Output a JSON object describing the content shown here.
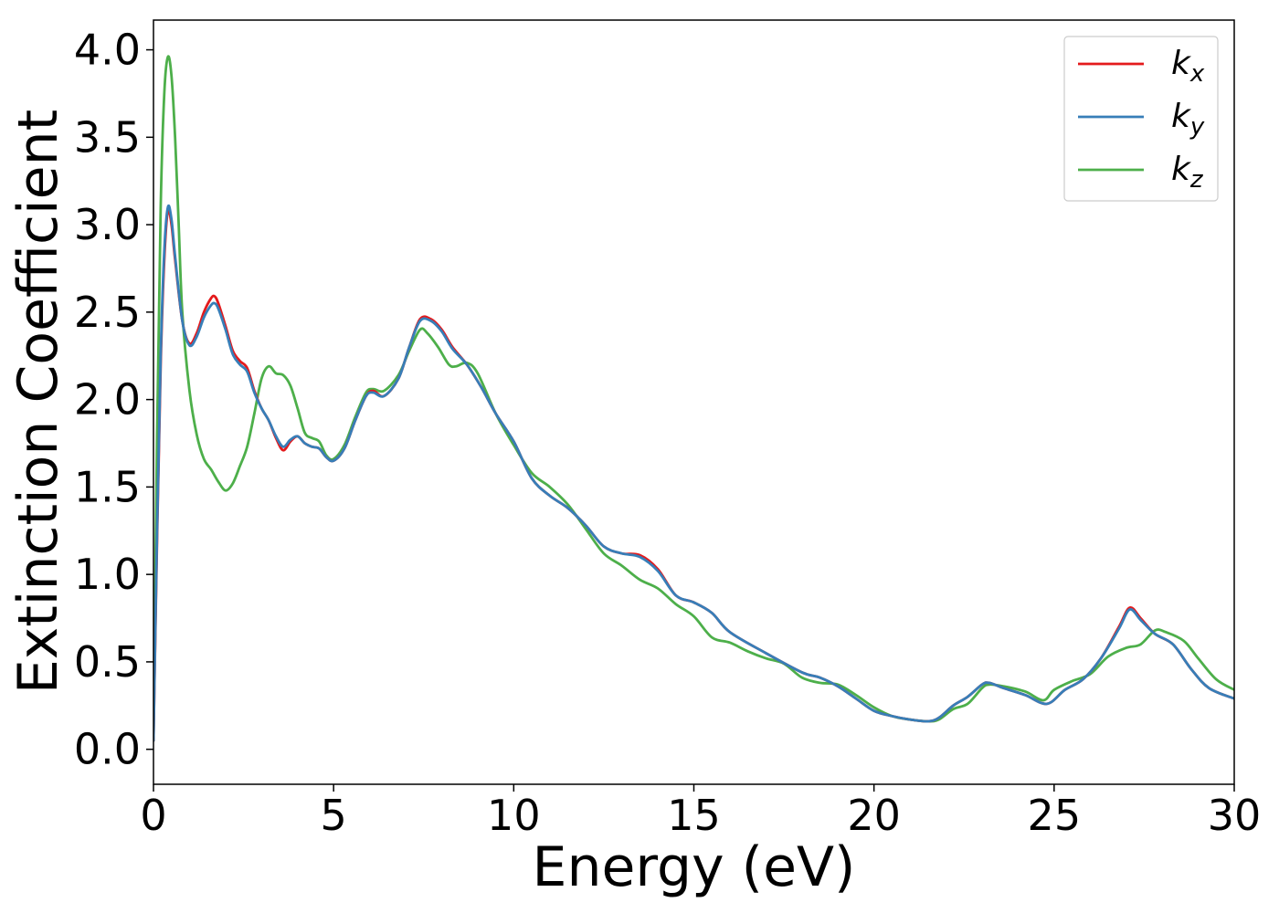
{
  "chart_data": {
    "type": "line",
    "xlabel": "Energy (eV)",
    "ylabel": "Extinction Coefficient",
    "xlim": [
      0,
      30
    ],
    "ylim": [
      -0.2,
      4.17
    ],
    "xticks": [
      0,
      5,
      10,
      15,
      20,
      25,
      30
    ],
    "xtick_labels": [
      "0",
      "5",
      "10",
      "15",
      "20",
      "25",
      "30"
    ],
    "yticks": [
      0.0,
      0.5,
      1.0,
      1.5,
      2.0,
      2.5,
      3.0,
      3.5,
      4.0
    ],
    "ytick_labels": [
      "0.0",
      "0.5",
      "1.0",
      "1.5",
      "2.0",
      "2.5",
      "3.0",
      "3.5",
      "4.0"
    ],
    "grid": false,
    "legend_position": "top-right",
    "series": [
      {
        "name": "k",
        "subscript": "x",
        "color": "#e41a1c",
        "points": [
          [
            0,
            0.05
          ],
          [
            0.1,
            1.2
          ],
          [
            0.2,
            2.2
          ],
          [
            0.3,
            2.8
          ],
          [
            0.4,
            3.08
          ],
          [
            0.5,
            3.0
          ],
          [
            0.6,
            2.8
          ],
          [
            0.8,
            2.45
          ],
          [
            1.0,
            2.32
          ],
          [
            1.2,
            2.38
          ],
          [
            1.4,
            2.5
          ],
          [
            1.6,
            2.58
          ],
          [
            1.7,
            2.59
          ],
          [
            1.8,
            2.55
          ],
          [
            2.0,
            2.42
          ],
          [
            2.2,
            2.28
          ],
          [
            2.4,
            2.22
          ],
          [
            2.6,
            2.18
          ],
          [
            2.8,
            2.05
          ],
          [
            3.0,
            1.95
          ],
          [
            3.2,
            1.88
          ],
          [
            3.4,
            1.78
          ],
          [
            3.6,
            1.71
          ],
          [
            3.8,
            1.76
          ],
          [
            4.0,
            1.79
          ],
          [
            4.2,
            1.75
          ],
          [
            4.4,
            1.73
          ],
          [
            4.6,
            1.72
          ],
          [
            4.8,
            1.67
          ],
          [
            5.0,
            1.65
          ],
          [
            5.3,
            1.72
          ],
          [
            5.6,
            1.88
          ],
          [
            5.9,
            2.02
          ],
          [
            6.1,
            2.05
          ],
          [
            6.4,
            2.02
          ],
          [
            6.8,
            2.12
          ],
          [
            7.1,
            2.3
          ],
          [
            7.4,
            2.46
          ],
          [
            7.7,
            2.46
          ],
          [
            8.0,
            2.4
          ],
          [
            8.3,
            2.3
          ],
          [
            8.7,
            2.2
          ],
          [
            9.1,
            2.07
          ],
          [
            9.5,
            1.92
          ],
          [
            10.0,
            1.76
          ],
          [
            10.5,
            1.55
          ],
          [
            11.0,
            1.45
          ],
          [
            11.5,
            1.38
          ],
          [
            12.0,
            1.28
          ],
          [
            12.5,
            1.16
          ],
          [
            13.0,
            1.12
          ],
          [
            13.5,
            1.11
          ],
          [
            14.0,
            1.03
          ],
          [
            14.5,
            0.88
          ],
          [
            15.0,
            0.84
          ],
          [
            15.5,
            0.78
          ],
          [
            16.0,
            0.67
          ],
          [
            17.0,
            0.55
          ],
          [
            18.0,
            0.44
          ],
          [
            18.5,
            0.41
          ],
          [
            19.0,
            0.36
          ],
          [
            19.5,
            0.29
          ],
          [
            20.0,
            0.22
          ],
          [
            20.5,
            0.19
          ],
          [
            21.0,
            0.17
          ],
          [
            21.5,
            0.16
          ],
          [
            21.8,
            0.18
          ],
          [
            22.2,
            0.25
          ],
          [
            22.6,
            0.3
          ],
          [
            23.0,
            0.37
          ],
          [
            23.2,
            0.38
          ],
          [
            23.6,
            0.35
          ],
          [
            24.2,
            0.31
          ],
          [
            24.8,
            0.26
          ],
          [
            25.3,
            0.34
          ],
          [
            25.8,
            0.4
          ],
          [
            26.3,
            0.52
          ],
          [
            26.8,
            0.7
          ],
          [
            27.1,
            0.81
          ],
          [
            27.4,
            0.75
          ],
          [
            27.8,
            0.66
          ],
          [
            28.3,
            0.6
          ],
          [
            28.8,
            0.46
          ],
          [
            29.3,
            0.35
          ],
          [
            30.0,
            0.29
          ]
        ]
      },
      {
        "name": "k",
        "subscript": "y",
        "color": "#377eb8",
        "points": [
          [
            0,
            0.05
          ],
          [
            0.1,
            1.25
          ],
          [
            0.2,
            2.25
          ],
          [
            0.3,
            2.85
          ],
          [
            0.4,
            3.1
          ],
          [
            0.5,
            3.03
          ],
          [
            0.6,
            2.82
          ],
          [
            0.8,
            2.45
          ],
          [
            1.0,
            2.31
          ],
          [
            1.2,
            2.36
          ],
          [
            1.4,
            2.47
          ],
          [
            1.6,
            2.54
          ],
          [
            1.7,
            2.55
          ],
          [
            1.8,
            2.52
          ],
          [
            2.0,
            2.4
          ],
          [
            2.2,
            2.26
          ],
          [
            2.4,
            2.2
          ],
          [
            2.6,
            2.16
          ],
          [
            2.8,
            2.04
          ],
          [
            3.0,
            1.95
          ],
          [
            3.2,
            1.88
          ],
          [
            3.4,
            1.79
          ],
          [
            3.6,
            1.73
          ],
          [
            3.8,
            1.77
          ],
          [
            4.0,
            1.79
          ],
          [
            4.2,
            1.75
          ],
          [
            4.4,
            1.73
          ],
          [
            4.6,
            1.72
          ],
          [
            4.8,
            1.67
          ],
          [
            5.0,
            1.65
          ],
          [
            5.3,
            1.72
          ],
          [
            5.6,
            1.88
          ],
          [
            5.9,
            2.02
          ],
          [
            6.1,
            2.04
          ],
          [
            6.4,
            2.02
          ],
          [
            6.8,
            2.12
          ],
          [
            7.1,
            2.3
          ],
          [
            7.4,
            2.45
          ],
          [
            7.7,
            2.45
          ],
          [
            8.0,
            2.39
          ],
          [
            8.3,
            2.29
          ],
          [
            8.7,
            2.2
          ],
          [
            9.1,
            2.07
          ],
          [
            9.5,
            1.92
          ],
          [
            10.0,
            1.76
          ],
          [
            10.5,
            1.55
          ],
          [
            11.0,
            1.45
          ],
          [
            11.5,
            1.38
          ],
          [
            12.0,
            1.28
          ],
          [
            12.5,
            1.16
          ],
          [
            13.0,
            1.12
          ],
          [
            13.5,
            1.1
          ],
          [
            14.0,
            1.02
          ],
          [
            14.5,
            0.88
          ],
          [
            15.0,
            0.84
          ],
          [
            15.5,
            0.78
          ],
          [
            16.0,
            0.67
          ],
          [
            17.0,
            0.55
          ],
          [
            18.0,
            0.44
          ],
          [
            18.5,
            0.41
          ],
          [
            19.0,
            0.36
          ],
          [
            19.5,
            0.29
          ],
          [
            20.0,
            0.22
          ],
          [
            20.5,
            0.19
          ],
          [
            21.0,
            0.17
          ],
          [
            21.5,
            0.16
          ],
          [
            21.8,
            0.18
          ],
          [
            22.2,
            0.25
          ],
          [
            22.6,
            0.3
          ],
          [
            23.0,
            0.37
          ],
          [
            23.2,
            0.38
          ],
          [
            23.6,
            0.35
          ],
          [
            24.2,
            0.31
          ],
          [
            24.8,
            0.26
          ],
          [
            25.3,
            0.34
          ],
          [
            25.8,
            0.4
          ],
          [
            26.3,
            0.52
          ],
          [
            26.8,
            0.69
          ],
          [
            27.1,
            0.8
          ],
          [
            27.4,
            0.74
          ],
          [
            27.8,
            0.66
          ],
          [
            28.3,
            0.6
          ],
          [
            28.8,
            0.46
          ],
          [
            29.3,
            0.35
          ],
          [
            30.0,
            0.29
          ]
        ]
      },
      {
        "name": "k",
        "subscript": "z",
        "color": "#4daf4a",
        "points": [
          [
            0,
            0.05
          ],
          [
            0.1,
            1.8
          ],
          [
            0.2,
            3.1
          ],
          [
            0.3,
            3.75
          ],
          [
            0.4,
            3.96
          ],
          [
            0.5,
            3.85
          ],
          [
            0.6,
            3.5
          ],
          [
            0.7,
            3.0
          ],
          [
            0.8,
            2.5
          ],
          [
            1.0,
            2.05
          ],
          [
            1.2,
            1.8
          ],
          [
            1.4,
            1.66
          ],
          [
            1.6,
            1.6
          ],
          [
            1.8,
            1.53
          ],
          [
            2.0,
            1.48
          ],
          [
            2.2,
            1.52
          ],
          [
            2.4,
            1.62
          ],
          [
            2.6,
            1.73
          ],
          [
            2.8,
            1.92
          ],
          [
            3.0,
            2.12
          ],
          [
            3.2,
            2.19
          ],
          [
            3.4,
            2.15
          ],
          [
            3.6,
            2.14
          ],
          [
            3.8,
            2.08
          ],
          [
            4.0,
            1.95
          ],
          [
            4.2,
            1.81
          ],
          [
            4.4,
            1.78
          ],
          [
            4.6,
            1.76
          ],
          [
            4.8,
            1.68
          ],
          [
            5.0,
            1.66
          ],
          [
            5.3,
            1.74
          ],
          [
            5.6,
            1.9
          ],
          [
            5.9,
            2.04
          ],
          [
            6.1,
            2.06
          ],
          [
            6.4,
            2.05
          ],
          [
            6.8,
            2.14
          ],
          [
            7.1,
            2.28
          ],
          [
            7.4,
            2.4
          ],
          [
            7.6,
            2.38
          ],
          [
            7.9,
            2.3
          ],
          [
            8.2,
            2.2
          ],
          [
            8.4,
            2.19
          ],
          [
            8.7,
            2.21
          ],
          [
            9.0,
            2.15
          ],
          [
            9.5,
            1.92
          ],
          [
            10.0,
            1.74
          ],
          [
            10.5,
            1.58
          ],
          [
            11.0,
            1.5
          ],
          [
            11.5,
            1.4
          ],
          [
            12.0,
            1.26
          ],
          [
            12.5,
            1.12
          ],
          [
            13.0,
            1.05
          ],
          [
            13.5,
            0.97
          ],
          [
            14.0,
            0.92
          ],
          [
            14.5,
            0.83
          ],
          [
            15.0,
            0.76
          ],
          [
            15.5,
            0.64
          ],
          [
            16.0,
            0.61
          ],
          [
            16.5,
            0.56
          ],
          [
            17.0,
            0.52
          ],
          [
            17.5,
            0.49
          ],
          [
            18.0,
            0.41
          ],
          [
            18.5,
            0.38
          ],
          [
            19.0,
            0.37
          ],
          [
            19.5,
            0.31
          ],
          [
            20.0,
            0.24
          ],
          [
            20.5,
            0.19
          ],
          [
            21.0,
            0.17
          ],
          [
            21.5,
            0.16
          ],
          [
            21.8,
            0.17
          ],
          [
            22.2,
            0.23
          ],
          [
            22.6,
            0.26
          ],
          [
            23.0,
            0.35
          ],
          [
            23.2,
            0.37
          ],
          [
            23.6,
            0.36
          ],
          [
            24.2,
            0.33
          ],
          [
            24.7,
            0.28
          ],
          [
            25.0,
            0.34
          ],
          [
            25.5,
            0.39
          ],
          [
            26.0,
            0.43
          ],
          [
            26.5,
            0.53
          ],
          [
            27.0,
            0.58
          ],
          [
            27.4,
            0.6
          ],
          [
            27.8,
            0.68
          ],
          [
            28.1,
            0.67
          ],
          [
            28.6,
            0.62
          ],
          [
            29.0,
            0.52
          ],
          [
            29.5,
            0.4
          ],
          [
            30.0,
            0.34
          ]
        ]
      }
    ]
  }
}
